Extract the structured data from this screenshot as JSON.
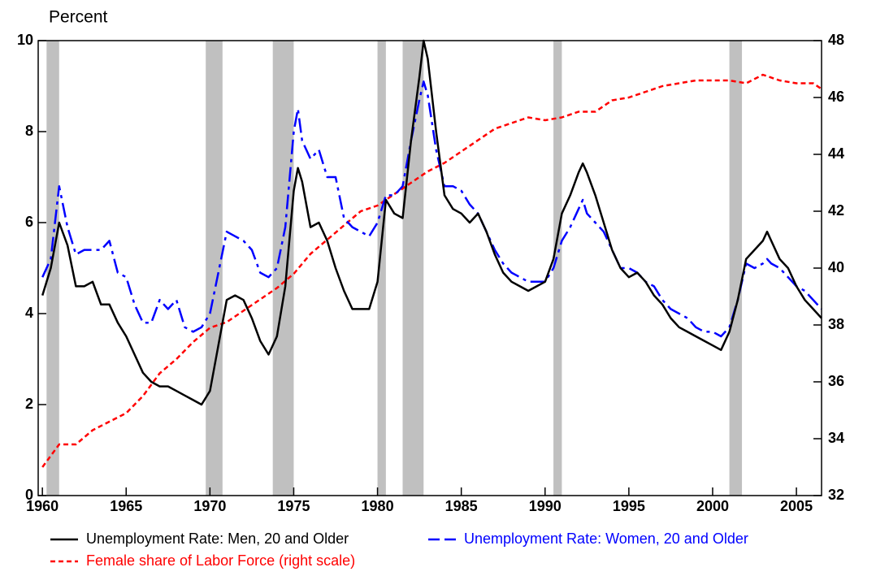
{
  "chart_data": {
    "type": "line",
    "y_label": "Percent",
    "xlim": [
      1959.75,
      2006.5
    ],
    "xticks": [
      1960,
      1965,
      1970,
      1975,
      1980,
      1985,
      1990,
      1995,
      2000,
      2005
    ],
    "ylim": [
      0,
      10
    ],
    "yticks": [
      0,
      2,
      4,
      6,
      8,
      10
    ],
    "y2lim": [
      32,
      48
    ],
    "y2ticks": [
      32,
      34,
      36,
      38,
      40,
      42,
      44,
      46,
      48
    ],
    "recession_color": "#c0c0c0",
    "recessions": [
      [
        1960.25,
        1961.0
      ],
      [
        1969.75,
        1970.75
      ],
      [
        1973.75,
        1975.0
      ],
      [
        1980.0,
        1980.5
      ],
      [
        1981.5,
        1982.75
      ],
      [
        1990.5,
        1991.0
      ],
      [
        2001.0,
        2001.75
      ]
    ],
    "series": [
      {
        "name": "Unemployment Rate: Men, 20  and Older",
        "color": "#000000",
        "dash": "solid",
        "x": [
          1960,
          1960.5,
          1961,
          1961.5,
          1962,
          1962.5,
          1963,
          1963.5,
          1964,
          1964.5,
          1965,
          1965.5,
          1966,
          1966.5,
          1967,
          1967.5,
          1968,
          1968.5,
          1969,
          1969.5,
          1970,
          1970.5,
          1971,
          1971.5,
          1972,
          1972.5,
          1973,
          1973.5,
          1974,
          1974.5,
          1975,
          1975.25,
          1975.5,
          1976,
          1976.5,
          1977,
          1977.5,
          1978,
          1978.5,
          1979,
          1979.5,
          1980,
          1980.5,
          1981,
          1981.5,
          1982,
          1982.5,
          1982.75,
          1983,
          1983.5,
          1984,
          1984.5,
          1985,
          1985.5,
          1986,
          1986.5,
          1987,
          1987.5,
          1988,
          1988.5,
          1989,
          1989.5,
          1990,
          1990.5,
          1991,
          1991.5,
          1992,
          1992.25,
          1992.5,
          1993,
          1993.5,
          1994,
          1994.5,
          1995,
          1995.5,
          1996,
          1996.5,
          1997,
          1997.5,
          1998,
          1998.5,
          1999,
          1999.5,
          2000,
          2000.5,
          2001,
          2001.5,
          2002,
          2002.5,
          2003,
          2003.25,
          2003.5,
          2004,
          2004.5,
          2005,
          2005.5,
          2006,
          2006.5
        ],
        "values": [
          4.4,
          5.0,
          6.0,
          5.5,
          4.6,
          4.6,
          4.7,
          4.2,
          4.2,
          3.8,
          3.5,
          3.1,
          2.7,
          2.5,
          2.4,
          2.4,
          2.3,
          2.2,
          2.1,
          2.0,
          2.3,
          3.3,
          4.3,
          4.4,
          4.3,
          3.9,
          3.4,
          3.1,
          3.5,
          4.6,
          6.7,
          7.2,
          6.9,
          5.9,
          6.0,
          5.6,
          5.0,
          4.5,
          4.1,
          4.1,
          4.1,
          4.7,
          6.5,
          6.2,
          6.1,
          7.8,
          9.2,
          10.0,
          9.6,
          8.0,
          6.6,
          6.3,
          6.2,
          6.0,
          6.2,
          5.8,
          5.3,
          4.9,
          4.7,
          4.6,
          4.5,
          4.6,
          4.7,
          5.2,
          6.2,
          6.6,
          7.1,
          7.3,
          7.1,
          6.6,
          6.0,
          5.4,
          5.0,
          4.8,
          4.9,
          4.7,
          4.4,
          4.2,
          3.9,
          3.7,
          3.6,
          3.5,
          3.4,
          3.3,
          3.2,
          3.6,
          4.3,
          5.2,
          5.4,
          5.6,
          5.8,
          5.6,
          5.2,
          5.0,
          4.6,
          4.3,
          4.1,
          3.9
        ]
      },
      {
        "name": "Unemployment Rate: Women, 20 and Older",
        "color": "#0000ff",
        "dash": "dashdot",
        "x": [
          1960,
          1960.5,
          1961,
          1961.5,
          1962,
          1962.5,
          1963,
          1963.5,
          1964,
          1964.5,
          1965,
          1965.5,
          1966,
          1966.5,
          1967,
          1967.5,
          1968,
          1968.5,
          1969,
          1969.5,
          1970,
          1970.5,
          1971,
          1971.5,
          1972,
          1972.5,
          1973,
          1973.5,
          1974,
          1974.5,
          1975,
          1975.25,
          1975.5,
          1976,
          1976.5,
          1977,
          1977.5,
          1978,
          1978.5,
          1979,
          1979.5,
          1980,
          1980.5,
          1981,
          1981.5,
          1982,
          1982.5,
          1982.75,
          1983,
          1983.5,
          1984,
          1984.5,
          1985,
          1985.5,
          1986,
          1986.5,
          1987,
          1987.5,
          1988,
          1988.5,
          1989,
          1989.5,
          1990,
          1990.5,
          1991,
          1991.5,
          1992,
          1992.25,
          1992.5,
          1993,
          1993.5,
          1994,
          1994.5,
          1995,
          1995.5,
          1996,
          1996.5,
          1997,
          1997.5,
          1998,
          1998.5,
          1999,
          1999.5,
          2000,
          2000.5,
          2001,
          2001.5,
          2002,
          2002.5,
          2003,
          2003.25,
          2003.5,
          2004,
          2004.5,
          2005,
          2005.5,
          2006,
          2006.5
        ],
        "values": [
          4.8,
          5.2,
          6.8,
          5.9,
          5.3,
          5.4,
          5.4,
          5.4,
          5.6,
          4.9,
          4.8,
          4.2,
          3.8,
          3.8,
          4.3,
          4.1,
          4.3,
          3.7,
          3.6,
          3.7,
          4.0,
          4.9,
          5.8,
          5.7,
          5.6,
          5.4,
          4.9,
          4.8,
          5.0,
          5.9,
          8.0,
          8.5,
          7.8,
          7.4,
          7.6,
          7.0,
          7.0,
          6.1,
          5.9,
          5.8,
          5.7,
          6.0,
          6.6,
          6.6,
          6.8,
          7.8,
          8.7,
          9.1,
          8.8,
          7.6,
          6.8,
          6.8,
          6.7,
          6.4,
          6.2,
          5.8,
          5.4,
          5.1,
          4.9,
          4.8,
          4.7,
          4.7,
          4.7,
          5.0,
          5.6,
          5.9,
          6.3,
          6.5,
          6.2,
          6.0,
          5.8,
          5.4,
          5.0,
          5.0,
          4.9,
          4.7,
          4.6,
          4.3,
          4.1,
          4.0,
          3.9,
          3.7,
          3.6,
          3.6,
          3.5,
          3.7,
          4.3,
          5.1,
          5.0,
          5.1,
          5.2,
          5.1,
          5.0,
          4.8,
          4.6,
          4.5,
          4.3,
          4.1
        ]
      },
      {
        "name": "Female share of Labor Force (right scale)",
        "color": "#ff0000",
        "dash": "dash",
        "axis": "y2",
        "x": [
          1960,
          1961,
          1962,
          1963,
          1964,
          1965,
          1966,
          1967,
          1968,
          1969,
          1970,
          1971,
          1972,
          1973,
          1974,
          1975,
          1976,
          1977,
          1978,
          1979,
          1980,
          1981,
          1982,
          1983,
          1984,
          1985,
          1986,
          1987,
          1988,
          1989,
          1990,
          1991,
          1992,
          1993,
          1994,
          1995,
          1996,
          1997,
          1998,
          1999,
          2000,
          2001,
          2002,
          2003,
          2004,
          2005,
          2006,
          2006.5
        ],
        "values": [
          33.0,
          33.8,
          33.8,
          34.3,
          34.6,
          34.9,
          35.5,
          36.3,
          36.8,
          37.4,
          37.9,
          38.1,
          38.5,
          38.9,
          39.3,
          39.8,
          40.5,
          41.0,
          41.5,
          42.0,
          42.2,
          42.6,
          43.0,
          43.4,
          43.7,
          44.1,
          44.5,
          44.9,
          45.1,
          45.3,
          45.2,
          45.3,
          45.5,
          45.5,
          45.9,
          46.0,
          46.2,
          46.4,
          46.5,
          46.6,
          46.6,
          46.6,
          46.5,
          46.8,
          46.6,
          46.5,
          46.5,
          46.3
        ]
      }
    ]
  }
}
